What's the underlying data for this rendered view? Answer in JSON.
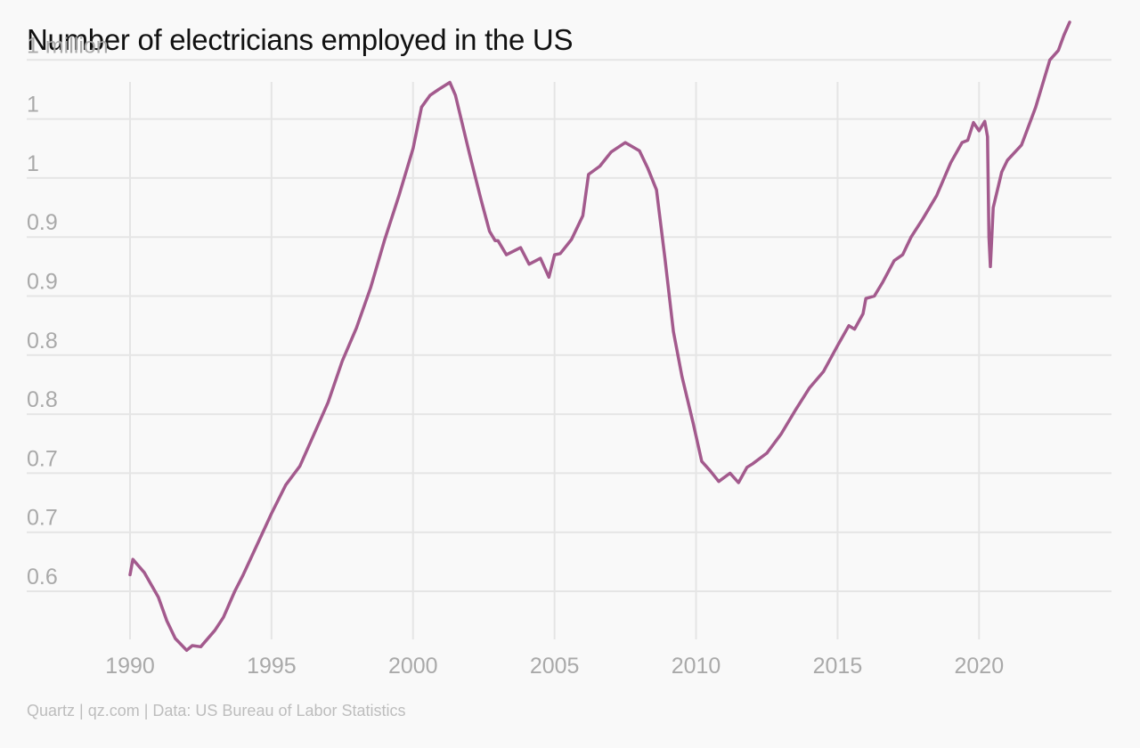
{
  "title": "Number of electricians employed in the US",
  "source": "Quartz | qz.com | Data: US Bureau of Labor Statistics",
  "colors": {
    "line": "#a35a8d",
    "background": "#f9f9f9",
    "grid": "#e5e5e5",
    "tick_text": "#a9a9a9",
    "title_text": "#111111",
    "source_text": "#bdbdbd"
  },
  "chart_data": {
    "type": "line",
    "title": "Number of electricians employed in the US",
    "xlabel": "",
    "ylabel": "",
    "grid": true,
    "legend": "none",
    "xlim": [
      1990,
      2023.2
    ],
    "ylim": [
      0.55,
      1.075
    ],
    "x_ticks": [
      1990,
      1995,
      2000,
      2005,
      2010,
      2015,
      2020
    ],
    "x_tick_labels": [
      "1990",
      "1995",
      "2000",
      "2005",
      "2010",
      "2015",
      "2020"
    ],
    "y_ticks": [
      0.6,
      0.65,
      0.7,
      0.75,
      0.8,
      0.85,
      0.9,
      0.95,
      1.0,
      1.05
    ],
    "y_tick_labels": [
      "0.6",
      "0.7",
      "0.7",
      "0.8",
      "0.8",
      "0.9",
      "0.9",
      "1",
      "1",
      "1 million"
    ],
    "series": [
      {
        "values_unit": "millions",
        "points": [
          [
            1990.0,
            0.614
          ],
          [
            1990.1,
            0.627
          ],
          [
            1990.5,
            0.616
          ],
          [
            1991.0,
            0.595
          ],
          [
            1991.3,
            0.575
          ],
          [
            1991.6,
            0.56
          ],
          [
            1992.0,
            0.55
          ],
          [
            1992.2,
            0.554
          ],
          [
            1992.5,
            0.553
          ],
          [
            1993.0,
            0.567
          ],
          [
            1993.3,
            0.578
          ],
          [
            1993.7,
            0.6
          ],
          [
            1994.0,
            0.614
          ],
          [
            1994.5,
            0.64
          ],
          [
            1995.0,
            0.666
          ],
          [
            1995.5,
            0.69
          ],
          [
            1996.0,
            0.706
          ],
          [
            1996.5,
            0.733
          ],
          [
            1997.0,
            0.76
          ],
          [
            1997.5,
            0.795
          ],
          [
            1998.0,
            0.823
          ],
          [
            1998.5,
            0.857
          ],
          [
            1999.0,
            0.898
          ],
          [
            1999.5,
            0.935
          ],
          [
            2000.0,
            0.975
          ],
          [
            2000.3,
            1.01
          ],
          [
            2000.6,
            1.02
          ],
          [
            2000.9,
            1.025
          ],
          [
            2001.3,
            1.031
          ],
          [
            2001.5,
            1.02
          ],
          [
            2002.0,
            0.97
          ],
          [
            2002.4,
            0.932
          ],
          [
            2002.7,
            0.905
          ],
          [
            2002.9,
            0.897
          ],
          [
            2003.0,
            0.897
          ],
          [
            2003.3,
            0.885
          ],
          [
            2003.8,
            0.891
          ],
          [
            2004.1,
            0.877
          ],
          [
            2004.5,
            0.882
          ],
          [
            2004.8,
            0.866
          ],
          [
            2005.0,
            0.885
          ],
          [
            2005.2,
            0.886
          ],
          [
            2005.6,
            0.898
          ],
          [
            2006.0,
            0.918
          ],
          [
            2006.2,
            0.953
          ],
          [
            2006.6,
            0.96
          ],
          [
            2007.0,
            0.972
          ],
          [
            2007.5,
            0.98
          ],
          [
            2008.0,
            0.973
          ],
          [
            2008.3,
            0.958
          ],
          [
            2008.6,
            0.94
          ],
          [
            2008.9,
            0.882
          ],
          [
            2009.2,
            0.82
          ],
          [
            2009.5,
            0.782
          ],
          [
            2009.9,
            0.742
          ],
          [
            2010.2,
            0.71
          ],
          [
            2010.5,
            0.702
          ],
          [
            2010.8,
            0.693
          ],
          [
            2011.2,
            0.7
          ],
          [
            2011.5,
            0.692
          ],
          [
            2011.8,
            0.705
          ],
          [
            2012.0,
            0.708
          ],
          [
            2012.5,
            0.717
          ],
          [
            2013.0,
            0.733
          ],
          [
            2013.5,
            0.753
          ],
          [
            2014.0,
            0.772
          ],
          [
            2014.5,
            0.786
          ],
          [
            2015.0,
            0.808
          ],
          [
            2015.4,
            0.825
          ],
          [
            2015.6,
            0.822
          ],
          [
            2015.9,
            0.835
          ],
          [
            2016.0,
            0.848
          ],
          [
            2016.3,
            0.85
          ],
          [
            2016.6,
            0.862
          ],
          [
            2017.0,
            0.88
          ],
          [
            2017.3,
            0.885
          ],
          [
            2017.6,
            0.9
          ],
          [
            2018.0,
            0.915
          ],
          [
            2018.5,
            0.935
          ],
          [
            2019.0,
            0.963
          ],
          [
            2019.4,
            0.98
          ],
          [
            2019.6,
            0.982
          ],
          [
            2019.8,
            0.997
          ],
          [
            2020.0,
            0.99
          ],
          [
            2020.2,
            0.998
          ],
          [
            2020.3,
            0.985
          ],
          [
            2020.35,
            0.9
          ],
          [
            2020.4,
            0.875
          ],
          [
            2020.5,
            0.925
          ],
          [
            2020.8,
            0.955
          ],
          [
            2021.0,
            0.965
          ],
          [
            2021.5,
            0.978
          ],
          [
            2022.0,
            1.01
          ],
          [
            2022.5,
            1.05
          ],
          [
            2022.8,
            1.058
          ],
          [
            2023.0,
            1.071
          ],
          [
            2023.2,
            1.082
          ]
        ]
      }
    ]
  }
}
